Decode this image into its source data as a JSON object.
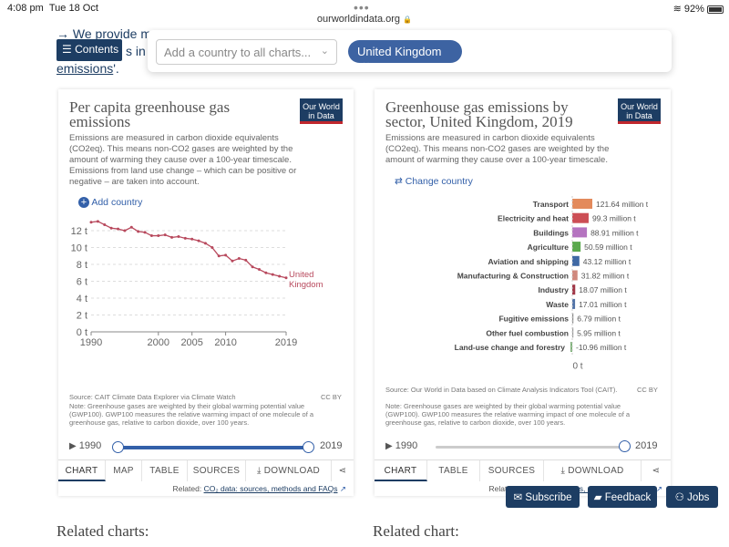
{
  "statusbar": {
    "time": "4:08 pm",
    "date": "Tue 18 Oct",
    "url": "ourworldindata.org",
    "lock": "🔒",
    "battery": "92%"
  },
  "intro": {
    "line1": "→ We provide mor",
    "line1b": "",
    "line2": "s in ou",
    "link": "emissions"
  },
  "contents_button": {
    "label": "Contents"
  },
  "country_bar": {
    "placeholder": "Add a country to all charts...",
    "chip": "United Kingdom",
    "chip_close": "×"
  },
  "logo": {
    "line1": "Our World",
    "line2": "in Data"
  },
  "card1": {
    "title_line1": "Per capita greenhouse gas",
    "title_line2": "emissions",
    "subtitle": "Emissions are measured in carbon dioxide equivalents (CO2eq). This means non-CO2 gases are weighted by the amount of warming they cause over a 100-year timescale. Emissions from land use change – which can be positive or negative – are taken into account.",
    "add_country": "Add country",
    "source": "Source: CAIT Climate Data Explorer via Climate Watch",
    "license": "CC BY",
    "note": "Note: Greenhouse gases are weighted by their global warming potential value (GWP100). GWP100 measures the relative warming impact of one molecule of a greenhouse gas, relative to carbon dioxide, over 100 years.",
    "timeline_start": "1990",
    "timeline_end": "2019",
    "tabs": [
      "CHART",
      "MAP",
      "TABLE",
      "SOURCES",
      "DOWNLOAD"
    ],
    "related_prefix": "Related:",
    "related_link": "CO₂ data: sources, methods and FAQs"
  },
  "card2": {
    "title_line1": "Greenhouse gas emissions by",
    "title_line2": "sector, United Kingdom, 2019",
    "subtitle": "Emissions are measured in carbon dioxide equivalents (CO2eq). This means non-CO2 gases are weighted by the amount of warming they cause over a 100-year timescale.",
    "change_country": "Change country",
    "source": "Source: Our World in Data based on Climate Analysis Indicators Tool (CAIT).",
    "license": "CC BY",
    "note": "Note: Greenhouse gases are weighted by their global warming potential value (GWP100). GWP100 measures the relative warming impact of one molecule of a greenhouse gas, relative to carbon dioxide, over 100 years.",
    "timeline_start": "1990",
    "timeline_end": "2019",
    "tabs": [
      "CHART",
      "TABLE",
      "SOURCES",
      "DOWNLOAD"
    ],
    "related_prefix": "Related:",
    "related_link": "CO₂ data: sources, methods and FAQs"
  },
  "related": {
    "left": "Related charts:",
    "right": "Related chart:"
  },
  "footer_buttons": {
    "subscribe": "Subscribe",
    "feedback": "Feedback",
    "jobs": "Jobs"
  },
  "colors": {
    "brand": "#1d3d63",
    "accent": "#3d63a2",
    "line": "#b8495d"
  },
  "chart_data": [
    {
      "type": "line",
      "title": "Per capita greenhouse gas emissions",
      "series": [
        {
          "name": "United Kingdom",
          "label_lines": [
            "United",
            "Kingdom"
          ],
          "color": "#b8495d",
          "x": [
            1990,
            1991,
            1992,
            1993,
            1994,
            1995,
            1996,
            1997,
            1998,
            1999,
            2000,
            2001,
            2002,
            2003,
            2004,
            2005,
            2006,
            2007,
            2008,
            2009,
            2010,
            2011,
            2012,
            2013,
            2014,
            2015,
            2016,
            2017,
            2018,
            2019
          ],
          "y": [
            13.0,
            13.1,
            12.7,
            12.3,
            12.2,
            12.0,
            12.4,
            11.9,
            11.8,
            11.4,
            11.4,
            11.5,
            11.2,
            11.3,
            11.1,
            11.0,
            10.8,
            10.5,
            10.0,
            9.0,
            9.1,
            8.4,
            8.7,
            8.5,
            7.7,
            7.4,
            7.0,
            6.8,
            6.6,
            6.4
          ]
        }
      ],
      "xlim": [
        1990,
        2019
      ],
      "ylim": [
        0,
        12
      ],
      "xticks": [
        1990,
        2000,
        2005,
        2010,
        2019
      ],
      "yticks": [
        0,
        2,
        4,
        6,
        8,
        10,
        12
      ],
      "ytick_suffix": " t",
      "grid": true
    },
    {
      "type": "bar",
      "title": "Greenhouse gas emissions by sector, United Kingdom, 2019",
      "categories": [
        "Transport",
        "Electricity and heat",
        "Buildings",
        "Agriculture",
        "Aviation and shipping",
        "Manufacturing & Construction",
        "Industry",
        "Waste",
        "Fugitive emissions",
        "Other fuel combustion",
        "Land-use change and forestry"
      ],
      "values": [
        121.64,
        99.3,
        88.91,
        50.59,
        43.12,
        31.82,
        18.07,
        17.01,
        6.79,
        5.95,
        -10.96
      ],
      "value_labels": [
        "121.64 million t",
        "99.3 million t",
        "88.91 million t",
        "50.59 million t",
        "43.12 million t",
        "31.82 million t",
        "18.07 million t",
        "17.01 million t",
        "6.79 million t",
        "5.95 million t",
        "-10.96 million t"
      ],
      "colors": [
        "#e38a5c",
        "#cc4e55",
        "#b574c0",
        "#5aa84d",
        "#3f68a4",
        "#d0897e",
        "#a13848",
        "#5374a8",
        "#888888",
        "#999999",
        "#7fb27a"
      ],
      "axis_label": "0 t"
    }
  ]
}
